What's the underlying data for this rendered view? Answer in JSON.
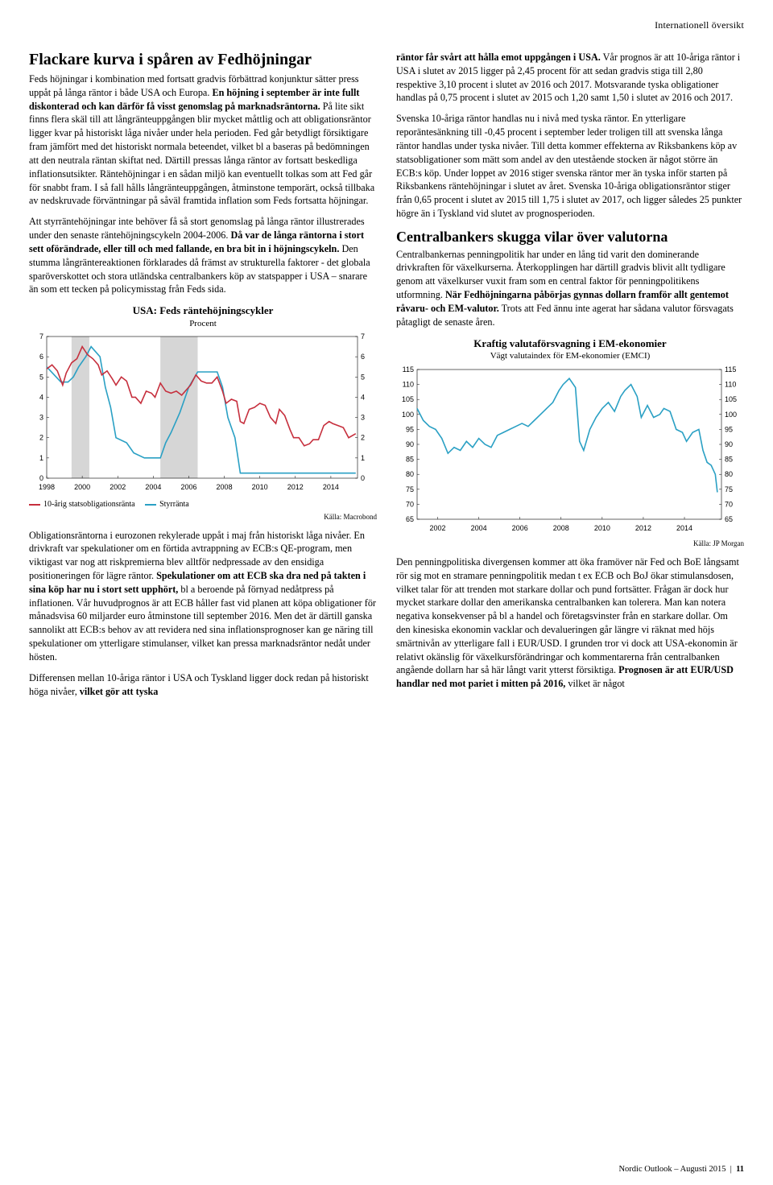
{
  "header_section": "Internationell översikt",
  "left": {
    "h1": "Flackare kurva i spåren av Fedhöjningar",
    "p1a": "Feds höjningar i kombination med fortsatt gradvis förbättrad konjunktur sätter press uppåt på långa räntor i både USA och Europa. ",
    "p1b": "En höjning i september är inte fullt diskonterad och kan därför få visst genomslag på marknadsräntorna.",
    "p1c": " På lite sikt finns flera skäl till att långränteuppgången blir mycket måttlig och att obligationsräntor ligger kvar på historiskt låga nivåer under hela perioden. Fed går betydligt försiktigare fram jämfört med det historiskt normala beteendet, vilket bl a baseras på bedömningen att den neutrala räntan skiftat ned. Därtill pressas långa räntor av fortsatt beskedliga inflationsutsikter. Räntehöjningar i en sådan miljö kan eventuellt tolkas som att Fed går för snabbt fram. I så fall hålls långränteuppgången, åtminstone temporärt, också tillbaka av nedskruvade förväntningar på såväl framtida inflation som Feds fortsatta höjningar.",
    "p2a": "Att styrräntehöjningar inte behöver få så stort genomslag på långa räntor illustrerades under den senaste räntehöjningscykeln 2004-2006. ",
    "p2b": "Då var de långa räntorna i stort sett oförändrade, eller till och med fallande, en bra bit in i höjningscykeln.",
    "p2c": " Den stumma långräntereaktionen förklarades då främst av strukturella faktorer - det globala sparöverskottet och stora utländska centralbankers köp av statspapper i USA – snarare än som ett tecken på policymisstag från Feds sida.",
    "p3a": "Obligationsräntorna i eurozonen rekylerade uppåt i maj från historiskt låga nivåer. En drivkraft var spekulationer om en förtida avtrappning av ECB:s QE-program, men viktigast var nog att riskpremierna blev alltför nedpressade av den ensidiga positioneringen för lägre räntor. ",
    "p3b": "Spekulationer om att ECB ska dra ned på takten i sina köp har nu i stort sett upphört,",
    "p3c": " bl a beroende på förnyad nedåtpress på inflationen. Vår huvudprognos är att ECB håller fast vid planen att köpa obligationer för månadsvisa 60 miljarder euro åtminstone till september 2016. Men det är därtill ganska sannolikt att ECB:s behov av att revidera ned sina inflationsprognoser kan ge näring till spekulationer om ytterligare stimulanser, vilket kan pressa marknadsräntor nedåt under hösten.",
    "p4a": "Differensen mellan 10-åriga räntor i USA och Tyskland ligger dock redan på historiskt höga nivåer, ",
    "p4b": "vilket gör att tyska"
  },
  "right": {
    "p1a": "räntor får svårt att hålla emot uppgången i USA.",
    "p1b": " Vår prognos är att 10-åriga räntor i USA i slutet av 2015 ligger på 2,45 procent för att sedan gradvis stiga till 2,80 respektive 3,10 procent i slutet av 2016 och 2017. Motsvarande tyska obligationer handlas på 0,75 procent i slutet av 2015 och 1,20 samt 1,50 i slutet av 2016 och 2017.",
    "p2": "Svenska 10-åriga räntor handlas nu i nivå med tyska räntor. En ytterligare reporäntesänkning till -0,45 procent i september leder troligen till att svenska långa räntor handlas under tyska nivåer. Till detta kommer effekterna av Riksbankens köp av statsobligationer som mätt som andel av den utestående stocken är något större än ECB:s köp. Under loppet av 2016 stiger svenska räntor mer än tyska inför starten på Riksbankens räntehöjningar i slutet av året. Svenska 10-åriga obligationsräntor stiger från 0,65 procent i slutet av 2015 till 1,75 i slutet av 2017, och ligger således 25 punkter högre än i Tyskland vid slutet av prognosperioden.",
    "h2": "Centralbankers skugga vilar över valutorna",
    "p3a": "Centralbankernas penningpolitik har under en lång tid varit den dominerande drivkraften för växelkurserna. Återkopplingen har därtill gradvis blivit allt tydligare genom att växelkurser vuxit fram som en central faktor för penningpolitikens utformning. ",
    "p3b": "När Fedhöjningarna påbörjas gynnas dollarn framför allt gentemot råvaru- och EM-valutor.",
    "p3c": " Trots att Fed ännu inte agerat har sådana valutor försvagats påtagligt de senaste åren.",
    "p4a": "Den penningpolitiska divergensen kommer att öka framöver när Fed och BoE långsamt rör sig mot en stramare penningpolitik medan t ex ECB och BoJ ökar stimulansdosen, vilket talar för att trenden mot starkare dollar och pund fortsätter. Frågan är dock hur mycket starkare dollar den amerikanska centralbanken kan tolerera. Man kan notera negativa konsekvenser på bl a handel och företagsvinster från en starkare dollar. Om den kinesiska ekonomin vacklar och devalueringen går längre vi räknat med höjs smärtnivån av ytterligare fall i EUR/USD. I grunden tror vi dock att USA-ekonomin är relativt okänslig för växelkursförändringar och kommentarerna från centralbanken angående dollarn har så här långt varit ytterst försiktiga. ",
    "p4b": "Prognosen är att EUR/USD handlar ned mot pariet i mitten på 2016,",
    "p4c": " vilket är något"
  },
  "chart1": {
    "type": "line",
    "title": "USA: Feds räntehöjningscykler",
    "subtitle": "Procent",
    "source": "Källa: Macrobond",
    "x_ticks": [
      "1998",
      "2000",
      "2002",
      "2004",
      "2006",
      "2008",
      "2010",
      "2012",
      "2014"
    ],
    "y_ticks": [
      0,
      1,
      2,
      3,
      4,
      5,
      6,
      7
    ],
    "ylim": [
      0,
      7
    ],
    "legend": [
      "10-årig statsobligationsränta",
      "Styrränta"
    ],
    "colors": {
      "series1": "#c62f3d",
      "series2": "#2aa0c4",
      "shade": "#d6d6d6",
      "axis": "#000",
      "grid": "none",
      "bg": "#ffffff"
    },
    "shade_regions_x": [
      [
        1999.4,
        2000.4
      ],
      [
        2004.4,
        2006.5
      ]
    ],
    "series1": [
      [
        1998,
        5.4
      ],
      [
        1998.3,
        5.6
      ],
      [
        1998.6,
        5.3
      ],
      [
        1998.9,
        4.6
      ],
      [
        1999.1,
        5.2
      ],
      [
        1999.4,
        5.7
      ],
      [
        1999.7,
        5.9
      ],
      [
        2000,
        6.5
      ],
      [
        2000.3,
        6.1
      ],
      [
        2000.6,
        5.9
      ],
      [
        2000.9,
        5.6
      ],
      [
        2001.1,
        5.1
      ],
      [
        2001.4,
        5.3
      ],
      [
        2001.7,
        4.9
      ],
      [
        2001.9,
        4.6
      ],
      [
        2002.2,
        5.0
      ],
      [
        2002.5,
        4.8
      ],
      [
        2002.8,
        4.0
      ],
      [
        2003,
        4.0
      ],
      [
        2003.3,
        3.7
      ],
      [
        2003.6,
        4.3
      ],
      [
        2003.9,
        4.2
      ],
      [
        2004.1,
        4.0
      ],
      [
        2004.4,
        4.7
      ],
      [
        2004.7,
        4.3
      ],
      [
        2005,
        4.2
      ],
      [
        2005.3,
        4.3
      ],
      [
        2005.6,
        4.1
      ],
      [
        2005.9,
        4.4
      ],
      [
        2006.1,
        4.6
      ],
      [
        2006.4,
        5.1
      ],
      [
        2006.7,
        4.8
      ],
      [
        2007,
        4.7
      ],
      [
        2007.3,
        4.7
      ],
      [
        2007.6,
        5.0
      ],
      [
        2007.9,
        4.3
      ],
      [
        2008.1,
        3.7
      ],
      [
        2008.4,
        3.9
      ],
      [
        2008.7,
        3.8
      ],
      [
        2008.9,
        2.8
      ],
      [
        2009.1,
        2.7
      ],
      [
        2009.4,
        3.4
      ],
      [
        2009.7,
        3.5
      ],
      [
        2010,
        3.7
      ],
      [
        2010.3,
        3.6
      ],
      [
        2010.6,
        3.0
      ],
      [
        2010.9,
        2.7
      ],
      [
        2011.1,
        3.4
      ],
      [
        2011.4,
        3.1
      ],
      [
        2011.7,
        2.4
      ],
      [
        2011.9,
        2.0
      ],
      [
        2012.2,
        2.0
      ],
      [
        2012.5,
        1.6
      ],
      [
        2012.8,
        1.7
      ],
      [
        2013,
        1.9
      ],
      [
        2013.3,
        1.9
      ],
      [
        2013.6,
        2.6
      ],
      [
        2013.9,
        2.8
      ],
      [
        2014.1,
        2.7
      ],
      [
        2014.4,
        2.6
      ],
      [
        2014.7,
        2.5
      ],
      [
        2015,
        2.0
      ],
      [
        2015.4,
        2.2
      ]
    ],
    "series2": [
      [
        1998,
        5.5
      ],
      [
        1998.8,
        4.75
      ],
      [
        1999.2,
        4.75
      ],
      [
        1999.5,
        5.0
      ],
      [
        1999.8,
        5.5
      ],
      [
        2000.2,
        6.0
      ],
      [
        2000.5,
        6.5
      ],
      [
        2001,
        6.0
      ],
      [
        2001.3,
        4.5
      ],
      [
        2001.6,
        3.5
      ],
      [
        2001.9,
        2.0
      ],
      [
        2002.5,
        1.75
      ],
      [
        2002.9,
        1.25
      ],
      [
        2003.5,
        1.0
      ],
      [
        2004.4,
        1.0
      ],
      [
        2004.7,
        1.75
      ],
      [
        2005,
        2.25
      ],
      [
        2005.5,
        3.25
      ],
      [
        2006,
        4.5
      ],
      [
        2006.5,
        5.25
      ],
      [
        2007.6,
        5.25
      ],
      [
        2007.9,
        4.5
      ],
      [
        2008.2,
        3.0
      ],
      [
        2008.6,
        2.0
      ],
      [
        2008.9,
        0.25
      ],
      [
        2015.4,
        0.25
      ]
    ]
  },
  "chart2": {
    "type": "line",
    "title": "Kraftig valutaförsvagning i EM-ekonomier",
    "subtitle": "Vägt valutaindex för EM-ekonomier (EMCI)",
    "source": "Källa: JP Morgan",
    "x_ticks": [
      "2002",
      "2004",
      "2006",
      "2008",
      "2010",
      "2012",
      "2014"
    ],
    "y_ticks": [
      65,
      70,
      75,
      80,
      85,
      90,
      95,
      100,
      105,
      110,
      115
    ],
    "ylim": [
      65,
      115
    ],
    "colors": {
      "series1": "#2aa0c4",
      "axis": "#000",
      "bg": "#ffffff"
    },
    "series1": [
      [
        2001,
        102
      ],
      [
        2001.3,
        98
      ],
      [
        2001.6,
        96
      ],
      [
        2001.9,
        95
      ],
      [
        2002.2,
        92
      ],
      [
        2002.5,
        87
      ],
      [
        2002.8,
        89
      ],
      [
        2003.1,
        88
      ],
      [
        2003.4,
        91
      ],
      [
        2003.7,
        89
      ],
      [
        2004,
        92
      ],
      [
        2004.3,
        90
      ],
      [
        2004.6,
        89
      ],
      [
        2004.9,
        93
      ],
      [
        2005.2,
        94
      ],
      [
        2005.5,
        95
      ],
      [
        2005.8,
        96
      ],
      [
        2006.1,
        97
      ],
      [
        2006.4,
        96
      ],
      [
        2006.7,
        98
      ],
      [
        2007,
        100
      ],
      [
        2007.3,
        102
      ],
      [
        2007.6,
        104
      ],
      [
        2007.9,
        108
      ],
      [
        2008.1,
        110
      ],
      [
        2008.4,
        112
      ],
      [
        2008.7,
        109
      ],
      [
        2008.9,
        91
      ],
      [
        2009.1,
        88
      ],
      [
        2009.4,
        95
      ],
      [
        2009.7,
        99
      ],
      [
        2010,
        102
      ],
      [
        2010.3,
        104
      ],
      [
        2010.6,
        101
      ],
      [
        2010.9,
        106
      ],
      [
        2011.1,
        108
      ],
      [
        2011.4,
        110
      ],
      [
        2011.7,
        106
      ],
      [
        2011.9,
        99
      ],
      [
        2012.2,
        103
      ],
      [
        2012.5,
        99
      ],
      [
        2012.8,
        100
      ],
      [
        2013,
        102
      ],
      [
        2013.3,
        101
      ],
      [
        2013.6,
        95
      ],
      [
        2013.9,
        94
      ],
      [
        2014.1,
        91
      ],
      [
        2014.4,
        94
      ],
      [
        2014.7,
        95
      ],
      [
        2014.9,
        88
      ],
      [
        2015.1,
        84
      ],
      [
        2015.3,
        83
      ],
      [
        2015.5,
        80
      ],
      [
        2015.6,
        74
      ]
    ]
  },
  "footer": {
    "pub": "Nordic Outlook – Augusti 2015",
    "page": "11"
  }
}
